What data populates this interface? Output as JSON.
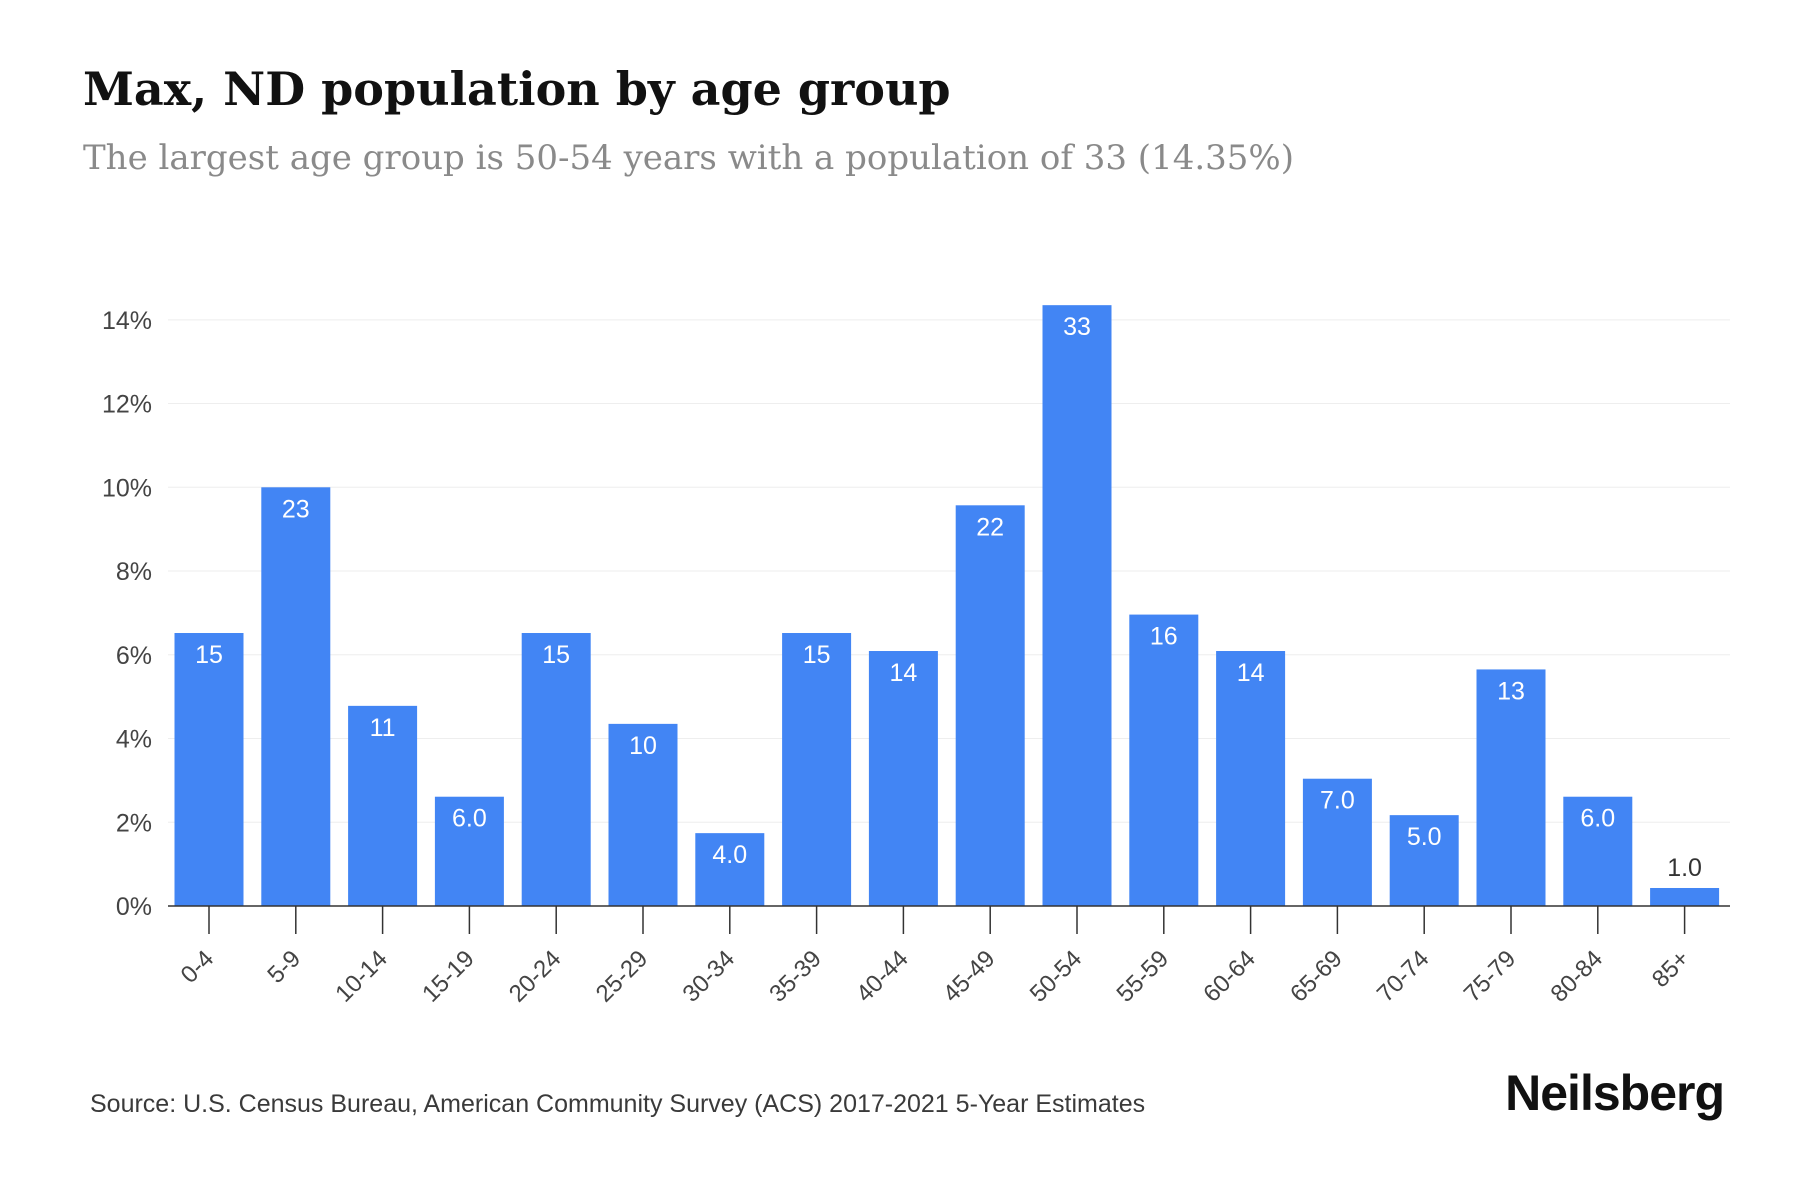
{
  "header": {
    "title": "Max, ND population by age group",
    "subtitle": "The largest age group is 50-54 years with a population of 33 (14.35%)"
  },
  "footer": {
    "source": "Source: U.S. Census Bureau, American Community Survey (ACS) 2017-2021 5-Year Estimates",
    "brand": "Neilsberg"
  },
  "colors": {
    "bar": "#4285f4",
    "bar_label": "#ffffff",
    "bar_label_outside": "#333333",
    "grid": "#eeeeee",
    "axis": "#333333",
    "tick_text": "#444444"
  },
  "chart_data": {
    "type": "bar",
    "title": "Max, ND population by age group",
    "subtitle": "The largest age group is 50-54 years with a population of 33 (14.35%)",
    "xlabel": "",
    "ylabel": "",
    "categories": [
      "0-4",
      "5-9",
      "10-14",
      "15-19",
      "20-24",
      "25-29",
      "30-34",
      "35-39",
      "40-44",
      "45-49",
      "50-54",
      "55-59",
      "60-64",
      "65-69",
      "70-74",
      "75-79",
      "80-84",
      "85+"
    ],
    "values": [
      6.52,
      10.0,
      4.78,
      2.61,
      6.52,
      4.35,
      1.74,
      6.52,
      6.09,
      9.57,
      14.35,
      6.96,
      6.09,
      3.04,
      2.17,
      5.65,
      2.61,
      0.43
    ],
    "data_labels": [
      "15",
      "23",
      "11",
      "6.0",
      "15",
      "10",
      "4.0",
      "15",
      "14",
      "22",
      "33",
      "16",
      "14",
      "7.0",
      "5.0",
      "13",
      "6.0",
      "1.0"
    ],
    "y_ticks": [
      0,
      2,
      4,
      6,
      8,
      10,
      12,
      14
    ],
    "y_tick_labels": [
      "0%",
      "2%",
      "4%",
      "6%",
      "8%",
      "10%",
      "12%",
      "14%"
    ],
    "ylim": [
      0,
      14.35
    ],
    "grid": true,
    "legend": "none"
  }
}
